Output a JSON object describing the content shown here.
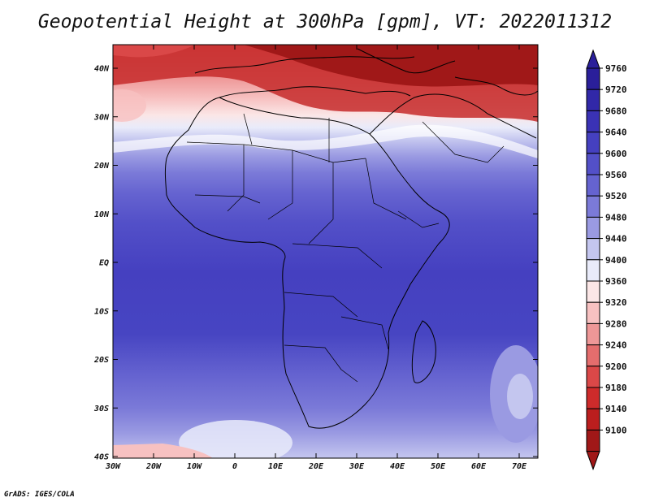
{
  "title": "Geopotential Height at 300hPa [gpm], VT: 2022011312",
  "credit": "GrADS: IGES/COLA",
  "map": {
    "lat_ticks": [
      "40N",
      "30N",
      "20N",
      "10N",
      "EQ",
      "10S",
      "20S",
      "30S",
      "40S"
    ],
    "lon_ticks": [
      "30W",
      "20W",
      "10W",
      "0",
      "10E",
      "20E",
      "30E",
      "40E",
      "50E",
      "60E",
      "70E"
    ]
  },
  "colorbar": {
    "labels": [
      "9760",
      "9720",
      "9680",
      "9640",
      "9600",
      "9560",
      "9520",
      "9480",
      "9440",
      "9400",
      "9360",
      "9320",
      "9280",
      "9240",
      "9200",
      "9180",
      "9140",
      "9100"
    ],
    "colors": [
      "#2a1f9a",
      "#3128a8",
      "#3a32b5",
      "#4540c0",
      "#5350c8",
      "#6563d0",
      "#7b7ad8",
      "#9a9ae2",
      "#c4c6ef",
      "#e9ebfa",
      "#fbe6e6",
      "#f7c1c1",
      "#ee9797",
      "#e46d6d",
      "#da4848",
      "#ce2b2b",
      "#bb1e1e",
      "#a01818"
    ]
  }
}
